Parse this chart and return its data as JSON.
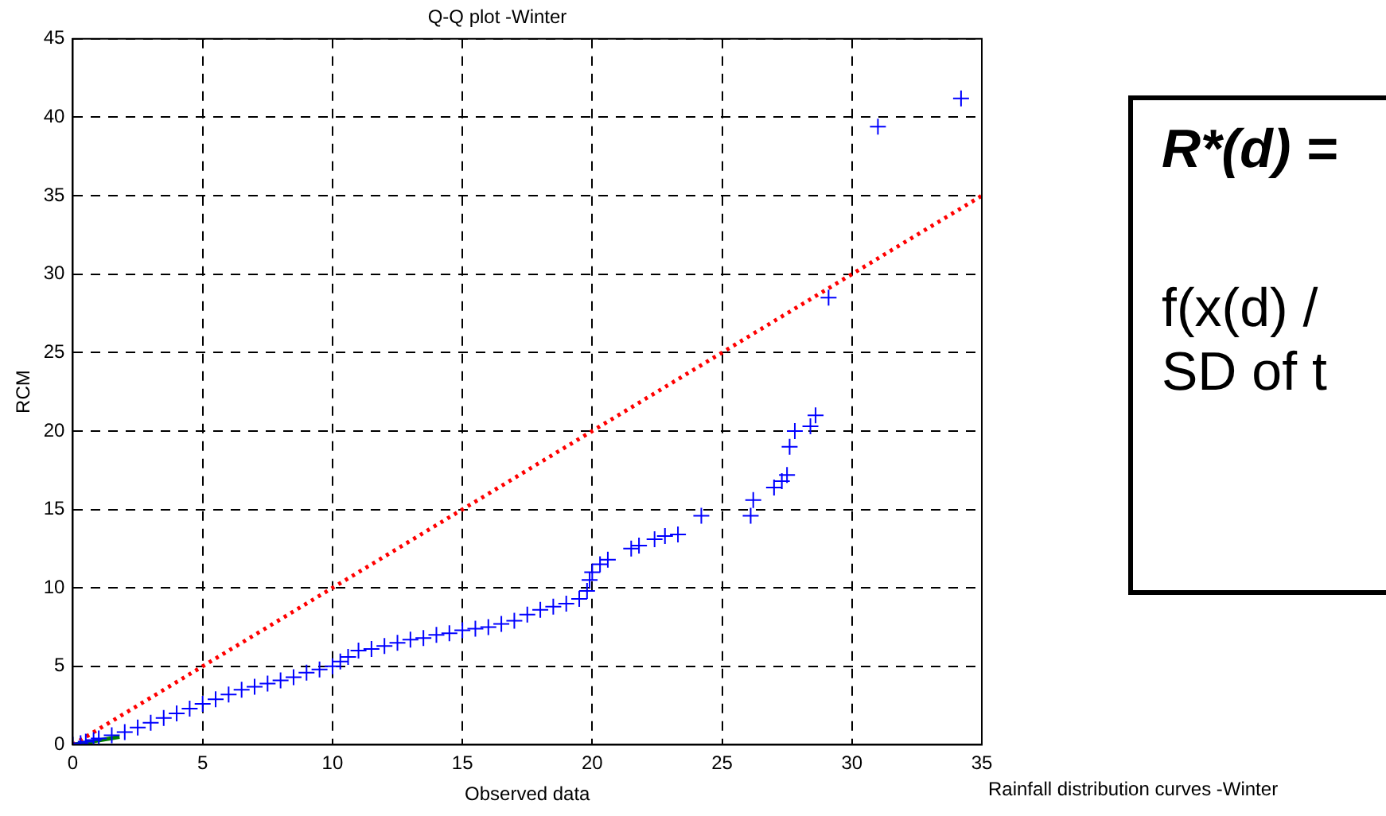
{
  "chart_data": {
    "type": "scatter",
    "title": "Q-Q plot -Winter",
    "xlabel": "Observed data",
    "ylabel": "RCM",
    "xlim": [
      0,
      35
    ],
    "ylim": [
      0,
      45
    ],
    "xticks": [
      0,
      5,
      10,
      15,
      20,
      25,
      30,
      35
    ],
    "yticks": [
      0,
      5,
      10,
      15,
      20,
      25,
      30,
      35,
      40,
      45
    ],
    "grid": true,
    "legend": false,
    "annotations": [
      "Rainfall distribution curves -Winter",
      "R*(d) =",
      "f(x(d) /",
      "SD of t"
    ],
    "series": [
      {
        "marker": "cross",
        "color": "#0000ff",
        "x": [
          0,
          0.3,
          0.5,
          0.8,
          1,
          1.5,
          2,
          2.5,
          3,
          3.5,
          4,
          4.5,
          5,
          5.5,
          6,
          6.5,
          7,
          7.5,
          8,
          8.5,
          9,
          9.5,
          10,
          10.3,
          10.6,
          11,
          11.5,
          12,
          12.5,
          13,
          13.5,
          14,
          14.5,
          15,
          15.5,
          16,
          16.5,
          17,
          17.5,
          18,
          18.5,
          19,
          19.5,
          19.8,
          19.9,
          20,
          20.3,
          20.6,
          21.5,
          21.8,
          22.4,
          22.8,
          23.3,
          24.2,
          26.1,
          26.2,
          27,
          27.3,
          27.5,
          27.6,
          27.8,
          28.4,
          28.6,
          29.1,
          31,
          34.2
        ],
        "values": [
          0,
          0.1,
          0.2,
          0.3,
          0.4,
          0.6,
          0.8,
          1.1,
          1.4,
          1.7,
          2,
          2.3,
          2.6,
          2.9,
          3.2,
          3.5,
          3.7,
          3.9,
          4.1,
          4.3,
          4.6,
          4.8,
          5,
          5.3,
          5.6,
          6,
          6.1,
          6.3,
          6.5,
          6.7,
          6.8,
          7,
          7.1,
          7.3,
          7.4,
          7.5,
          7.7,
          7.9,
          8.3,
          8.6,
          8.8,
          9,
          9.3,
          9.8,
          10.5,
          11,
          11.5,
          11.8,
          12.5,
          12.7,
          13.1,
          13.3,
          13.4,
          14.6,
          14.6,
          15.6,
          16.4,
          16.8,
          17.2,
          19,
          20,
          20.3,
          21,
          28.5,
          39.4,
          41.2
        ]
      },
      {
        "type": "line",
        "color": "#ff0000",
        "line_style": "dotted",
        "x": [
          0,
          35
        ],
        "values": [
          0,
          35
        ]
      },
      {
        "type": "line",
        "color": "#008000",
        "line_style": "solid",
        "x": [
          0,
          1.8
        ],
        "values": [
          0,
          0.5
        ]
      }
    ]
  }
}
